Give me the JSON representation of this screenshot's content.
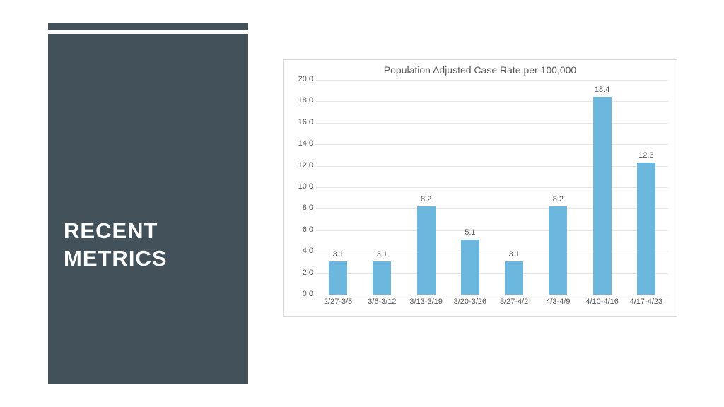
{
  "sidebar": {
    "title_line1": "RECENT",
    "title_line2": "METRICS",
    "panel_color": "#43525a",
    "text_color": "#ffffff",
    "title_fontsize": 31
  },
  "chart": {
    "type": "bar",
    "title": "Population Adjusted Case Rate per 100,000",
    "title_fontsize": 14,
    "title_color": "#595959",
    "border_color": "#d9d9d9",
    "background_color": "#ffffff",
    "grid_color": "#e6e6e6",
    "bar_color": "#6bb7dd",
    "label_color": "#595959",
    "label_fontsize": 11,
    "ylim": [
      0,
      20
    ],
    "ytick_step": 2,
    "yticks": [
      "0.0",
      "2.0",
      "4.0",
      "6.0",
      "8.0",
      "10.0",
      "12.0",
      "14.0",
      "16.0",
      "18.0",
      "20.0"
    ],
    "categories": [
      "2/27-3/5",
      "3/6-3/12",
      "3/13-3/19",
      "3/20-3/26",
      "3/27-4/2",
      "4/3-4/9",
      "4/10-4/16",
      "4/17-4/23"
    ],
    "values": [
      3.1,
      3.1,
      8.2,
      5.1,
      3.1,
      8.2,
      18.4,
      12.3
    ],
    "value_labels": [
      "3.1",
      "3.1",
      "8.2",
      "5.1",
      "3.1",
      "8.2",
      "18.4",
      "12.3"
    ],
    "bar_width_ratio": 0.42
  }
}
